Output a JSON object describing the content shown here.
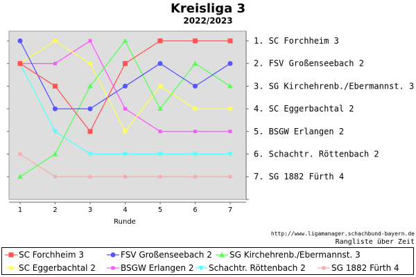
{
  "chart_data": {
    "type": "line",
    "title": "Kreisliga 3",
    "subtitle": "2022/2023",
    "xlabel": "Runde",
    "x": [
      1,
      2,
      3,
      4,
      5,
      6,
      7
    ],
    "y_inverted": true,
    "grid": false,
    "legend_position": "bottom",
    "series": [
      {
        "name": "SC Forchheim  3",
        "color": "#ff5555",
        "marker": "square",
        "values": [
          2,
          3,
          5,
          2,
          1,
          1,
          1
        ]
      },
      {
        "name": "FSV Großenseebach  2",
        "color": "#5555ff",
        "marker": "circle",
        "values": [
          1,
          4,
          4,
          3,
          2,
          3,
          2
        ]
      },
      {
        "name": "SG Kirchehrenb./Ebermannst. 3",
        "color": "#55ff55",
        "marker": "triangle-up",
        "values": [
          7,
          6,
          3,
          1,
          4,
          2,
          3
        ]
      },
      {
        "name": "SC Eggerbachtal  2",
        "color": "#ffff55",
        "marker": "diamond",
        "values": [
          2,
          1,
          2,
          5,
          3,
          4,
          4
        ]
      },
      {
        "name": "BSGW Erlangen 2",
        "color": "#ff55ff",
        "marker": "square-small",
        "values": [
          2,
          2,
          1,
          4,
          5,
          5,
          5
        ]
      },
      {
        "name": "Schachtr. Röttenbach 2",
        "color": "#55ffff",
        "marker": "triangle-down",
        "values": [
          2,
          5,
          6,
          6,
          6,
          6,
          6
        ]
      },
      {
        "name": "SG 1882 Fürth  4",
        "color": "#ffaaaa",
        "marker": "square-small",
        "values": [
          6,
          7,
          7,
          7,
          7,
          7,
          7
        ]
      }
    ],
    "rank_labels": [
      "1. SC Forchheim  3",
      "2. FSV Großenseebach  2",
      "3. SG Kirchehrenb./Ebermannst. 3",
      "4. SC Eggerbachtal  2",
      "5. BSGW Erlangen 2",
      "6. Schachtr. Röttenbach 2",
      "7. SG 1882 Fürth  4"
    ],
    "source_url": "http://www.ligamanager.schachbund-bayern.de",
    "footnote": "Rangliste über Zeit"
  }
}
